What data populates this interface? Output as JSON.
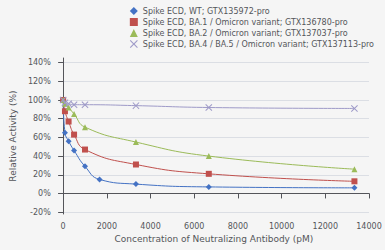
{
  "chart_data": {
    "type": "line",
    "xlabel": "Concentration of Neutralizing Antibody (pM)",
    "ylabel": "Relative Activity (%)",
    "xlim": [
      -200,
      14000
    ],
    "ylim": [
      -0.22,
      1.45
    ],
    "xticks": [
      0,
      2000,
      4000,
      6000,
      8000,
      10000,
      12000,
      14000
    ],
    "yticks": [
      {
        "value": -0.2,
        "label": "-20%"
      },
      {
        "value": 0.0,
        "label": "0%"
      },
      {
        "value": 0.2,
        "label": "20%"
      },
      {
        "value": 0.4,
        "label": "40%"
      },
      {
        "value": 0.6,
        "label": "60%"
      },
      {
        "value": 0.8,
        "label": "80%"
      },
      {
        "value": 1.0,
        "label": "100%"
      },
      {
        "value": 1.2,
        "label": "120%"
      },
      {
        "value": 1.4,
        "label": "140%"
      }
    ],
    "grid": "y",
    "legend": "upper right",
    "series": [
      {
        "name": "Spike ECD, WT; GTX135972-pro",
        "color": "#4472C4",
        "marker": "diamond",
        "x": [
          0,
          83,
          250,
          500,
          1000,
          1667,
          3333,
          6667,
          13333
        ],
        "values": [
          1.0,
          0.65,
          0.56,
          0.46,
          0.29,
          0.15,
          0.1,
          0.07,
          0.06
        ]
      },
      {
        "name": "Spike ECD, BA.1 / Omicron variant; GTX136780-pro",
        "color": "#C0504D",
        "marker": "square",
        "x": [
          0,
          83,
          250,
          500,
          1000,
          3333,
          6667,
          13333
        ],
        "values": [
          1.0,
          0.88,
          0.77,
          0.63,
          0.47,
          0.31,
          0.21,
          0.13
        ]
      },
      {
        "name": "Spike ECD, BA.2 / Omicron variant; GTX137037-pro",
        "color": "#9BBB59",
        "marker": "triangle",
        "x": [
          0,
          83,
          250,
          500,
          1000,
          3333,
          6667,
          13333
        ],
        "values": [
          1.0,
          0.96,
          0.92,
          0.85,
          0.71,
          0.55,
          0.4,
          0.26
        ]
      },
      {
        "name": "Spike ECD, BA.4 / BA.5 / Omicron variant; GTX137113-pro",
        "color": "#9E9AC8",
        "marker": "x",
        "x": [
          0,
          83,
          250,
          500,
          1000,
          3333,
          6667,
          13333
        ],
        "values": [
          1.0,
          0.97,
          0.96,
          0.95,
          0.95,
          0.94,
          0.92,
          0.91
        ]
      }
    ]
  }
}
